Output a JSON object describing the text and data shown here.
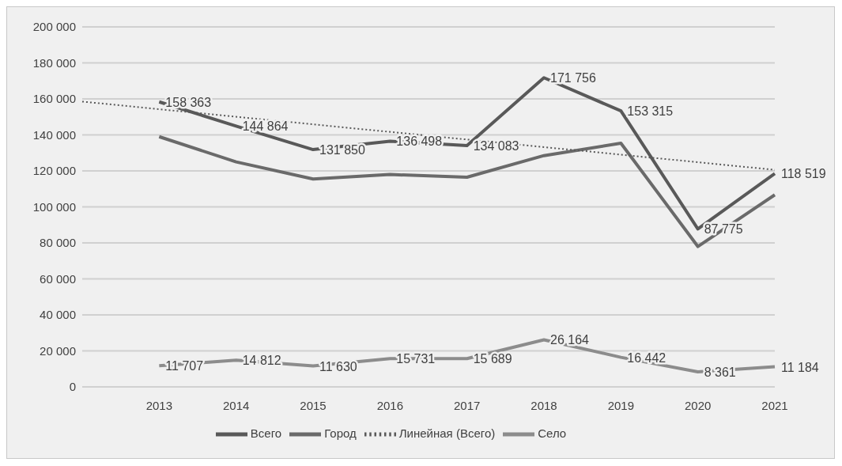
{
  "chart_data": {
    "type": "line",
    "categories": [
      null,
      "2013",
      "2014",
      "2015",
      "2016",
      "2017",
      "2018",
      "2019",
      "2020",
      "2021"
    ],
    "series": [
      {
        "name": "Всего",
        "color": "#595959",
        "values": [
          null,
          158363,
          144864,
          131850,
          136498,
          134083,
          171756,
          153315,
          87775,
          118519
        ],
        "value_labels": [
          null,
          "158 363",
          "144 864",
          "131 850",
          "136 498",
          "134 083",
          "171 756",
          "153 315",
          "87 775",
          "118 519"
        ]
      },
      {
        "name": "Город",
        "color": "#6a6a6a",
        "values": [
          null,
          139000,
          125000,
          115500,
          118000,
          116500,
          128500,
          135400,
          78000,
          106700
        ]
      },
      {
        "name": "Село",
        "color": "#8c8c8c",
        "values": [
          null,
          11707,
          14812,
          11630,
          15731,
          15689,
          26164,
          16442,
          8361,
          11184
        ],
        "value_labels": [
          null,
          "11 707",
          "14 812",
          "11 630",
          "15 731",
          "15 689",
          "26 164",
          "16 442",
          "8 361",
          "11 184"
        ]
      },
      {
        "name": "Линейная (Всего)",
        "color": "#595959",
        "line_style": "dotted",
        "values": [
          158500,
          null,
          null,
          null,
          null,
          null,
          null,
          null,
          null,
          120600
        ]
      }
    ],
    "ylim": [
      0,
      200000
    ],
    "yticks": [
      {
        "value": 0,
        "label": "0"
      },
      {
        "value": 20000,
        "label": "20 000"
      },
      {
        "value": 40000,
        "label": "40 000"
      },
      {
        "value": 60000,
        "label": "60 000"
      },
      {
        "value": 80000,
        "label": "80 000"
      },
      {
        "value": 100000,
        "label": "100 000"
      },
      {
        "value": 120000,
        "label": "120 000"
      },
      {
        "value": 140000,
        "label": "140 000"
      },
      {
        "value": 160000,
        "label": "160 000"
      },
      {
        "value": 180000,
        "label": "180 000"
      },
      {
        "value": 200000,
        "label": "200 000"
      }
    ],
    "grid": "y",
    "legend": "bottom",
    "marker": "none"
  }
}
